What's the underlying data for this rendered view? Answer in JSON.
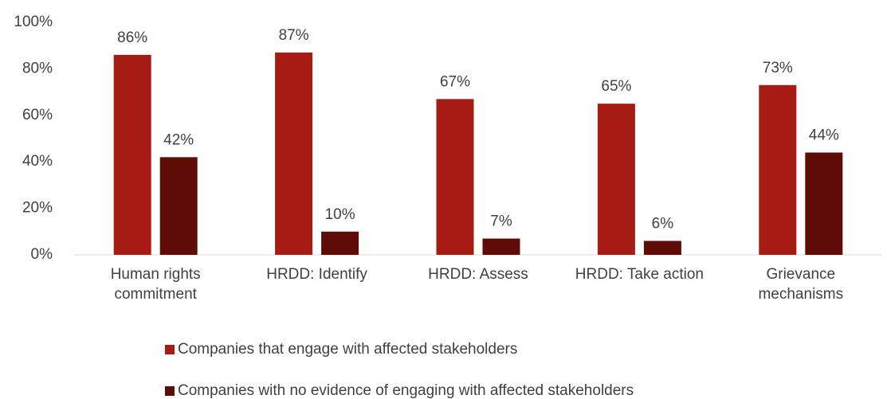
{
  "chart_data": {
    "type": "bar",
    "categories": [
      "Human rights commitment",
      "HRDD: Identify",
      "HRDD: Assess",
      "HRDD: Take action",
      "Grievance mechanisms"
    ],
    "series": [
      {
        "name": "Companies that engage with affected stakeholders",
        "color": "#a61c14",
        "values": [
          86,
          87,
          67,
          65,
          73
        ],
        "value_labels": [
          "86%",
          "87%",
          "67%",
          "65%",
          "73%"
        ]
      },
      {
        "name": "Companies with no evidence of engaging with affected stakeholders",
        "color": "#600c06",
        "values": [
          42,
          10,
          7,
          6,
          44
        ],
        "value_labels": [
          "42%",
          "10%",
          "7%",
          "6%",
          "44%"
        ]
      }
    ],
    "ylim": [
      0,
      100
    ],
    "yticks": [
      {
        "value": 0,
        "label": "0%"
      },
      {
        "value": 20,
        "label": "20%"
      },
      {
        "value": 40,
        "label": "40%"
      },
      {
        "value": 60,
        "label": "60%"
      },
      {
        "value": 80,
        "label": "80%"
      },
      {
        "value": 100,
        "label": "100%"
      }
    ],
    "grid": false
  }
}
